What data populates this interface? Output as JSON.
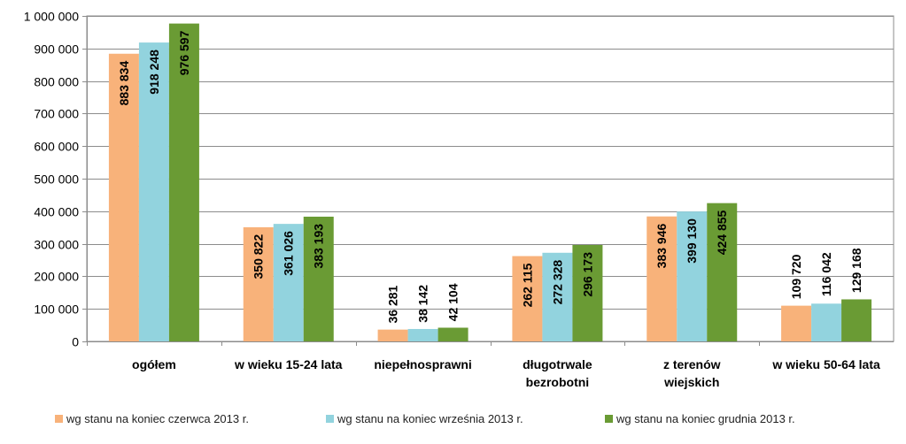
{
  "chart_data": {
    "type": "bar",
    "categories": [
      [
        "ogółem"
      ],
      [
        "w wieku 15-24 lata"
      ],
      [
        "niepełnosprawni"
      ],
      [
        "długotrwale",
        "bezrobotni"
      ],
      [
        "z terenów",
        "wiejskich"
      ],
      [
        "w wieku 50-64 lata"
      ]
    ],
    "series": [
      {
        "name": "wg stanu na koniec czerwca 2013 r.",
        "color": "#F8B27A",
        "values": [
          883834,
          350822,
          36281,
          262115,
          383946,
          109720
        ],
        "labels": [
          "883 834",
          "350 822",
          "36 281",
          "262 115",
          "383 946",
          "109 720"
        ]
      },
      {
        "name": "wg stanu na koniec września 2013 r.",
        "color": "#92D3DE",
        "values": [
          918248,
          361026,
          38142,
          272328,
          399130,
          116042
        ],
        "labels": [
          "918 248",
          "361 026",
          "38 142",
          "272 328",
          "399 130",
          "116 042"
        ]
      },
      {
        "name": "wg stanu na koniec grudnia  2013 r.",
        "color": "#6A9B34",
        "values": [
          976597,
          383193,
          42104,
          296173,
          424855,
          129168
        ],
        "labels": [
          "976 597",
          "383 193",
          "42 104",
          "296 173",
          "424 855",
          "129 168"
        ]
      }
    ],
    "ylim": [
      0,
      1000000
    ],
    "yticks": [
      0,
      100000,
      200000,
      300000,
      400000,
      500000,
      600000,
      700000,
      800000,
      900000,
      1000000
    ],
    "ytick_labels": [
      "0",
      "100 000",
      "200 000",
      "300 000",
      "400 000",
      "500 000",
      "600 000",
      "700 000",
      "800 000",
      "900 000",
      "1 000 000"
    ],
    "grid": true,
    "legend_position": "bottom",
    "title": "",
    "xlabel": "",
    "ylabel": ""
  }
}
